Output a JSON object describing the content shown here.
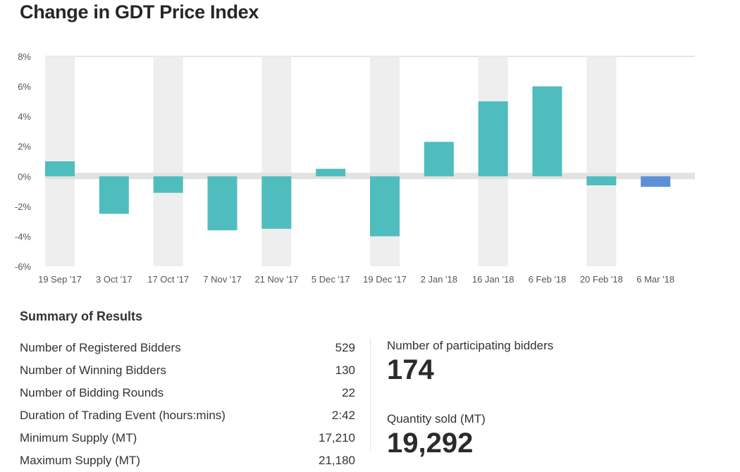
{
  "title": "Change in GDT Price Index",
  "chart_data": {
    "type": "bar",
    "title": "Change in GDT Price Index",
    "categories": [
      "19 Sep '17",
      "3 Oct '17",
      "17 Oct '17",
      "7 Nov '17",
      "21 Nov '17",
      "5 Dec '17",
      "19 Dec '17",
      "2 Jan '18",
      "16 Jan '18",
      "6 Feb '18",
      "20 Feb '18",
      "6 Mar '18"
    ],
    "values": [
      1.0,
      -2.5,
      -1.1,
      -3.6,
      -3.5,
      0.5,
      -4.0,
      2.3,
      5.0,
      6.0,
      -0.6,
      -0.7
    ],
    "ylim": [
      -6,
      8
    ],
    "yticks": [
      -6,
      -4,
      -2,
      0,
      2,
      4,
      6,
      8
    ],
    "yticks_labels": [
      "-6%",
      "-4%",
      "-2%",
      "0%",
      "2%",
      "4%",
      "6%",
      "8%"
    ],
    "grid": false,
    "colors": {
      "bar": "#4fbdbd",
      "highlight": "#5b8fd6",
      "band": "#eeeeee",
      "zero_band": "#e2e2e2"
    },
    "highlight_index": 11
  },
  "summary": {
    "title": "Summary of Results",
    "rows": [
      {
        "label": "Number of Registered Bidders",
        "value": "529"
      },
      {
        "label": "Number of Winning Bidders",
        "value": "130"
      },
      {
        "label": "Number of Bidding Rounds",
        "value": "22"
      },
      {
        "label": "Duration of Trading Event (hours:mins)",
        "value": "2:42"
      },
      {
        "label": "Minimum Supply (MT)",
        "value": "17,210"
      },
      {
        "label": "Maximum Supply (MT)",
        "value": "21,180"
      }
    ],
    "participating": {
      "label": "Number of participating bidders",
      "value": "174"
    },
    "quantity": {
      "label": "Quantity sold (MT)",
      "value": "19,292"
    }
  }
}
